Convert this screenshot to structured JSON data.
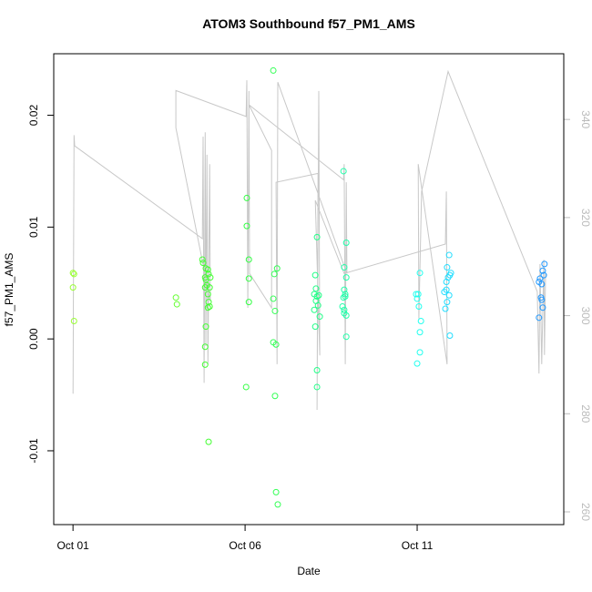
{
  "chart_data": {
    "type": "scatter",
    "title": "ATOM3 Southbound f57_PM1_AMS",
    "x_label": "Date",
    "y_label": "f57_PM1_AMS",
    "xlim": [
      -0.56,
      14.26
    ],
    "ylim": [
      -0.0166,
      0.0255
    ],
    "y2lim": [
      257.4,
      353.4
    ],
    "xticks": [
      {
        "value": 0,
        "label": "Oct 01"
      },
      {
        "value": 5,
        "label": "Oct 06"
      },
      {
        "value": 10,
        "label": "Oct 11"
      }
    ],
    "yticks": [
      -0.01,
      {
        "value": 0,
        "label": "0.00"
      },
      0.01,
      0.02
    ],
    "y2ticks": [
      260,
      280,
      300,
      320,
      340
    ],
    "series": [
      {
        "color": "#99ff33",
        "x": [
          0,
          0.03,
          0,
          0.03
        ],
        "values": [
          0.0059,
          0.0058,
          0.0046,
          0.0016
        ]
      },
      {
        "color": "#66ff33",
        "x": [
          2.99,
          3.02
        ],
        "values": [
          0.0037,
          0.0031
        ]
      },
      {
        "color": "#44ff33",
        "x": [
          3.76,
          3.78,
          3.84,
          3.84,
          3.86,
          3.89,
          3.86,
          3.92,
          3.94,
          3.97,
          3.86,
          3.84,
          3.84,
          3.94,
          3.92,
          3.94,
          3.97,
          3.99,
          3.92
        ],
        "values": [
          0.0071,
          0.0068,
          0.0055,
          0.0046,
          0.0053,
          0.0048,
          0.0063,
          0.004,
          0.0033,
          0.0029,
          0.0011,
          -0.0007,
          -0.0023,
          -0.0092,
          0.0062,
          0.0058,
          0.0046,
          0.0055,
          0.0028
        ]
      },
      {
        "color": "#33ff44",
        "x": [
          5.03,
          5.05,
          5.05,
          5.11,
          5.11,
          5.11
        ],
        "values": [
          -0.0043,
          0.0126,
          0.0101,
          0.0071,
          0.0054,
          0.0033
        ]
      },
      {
        "color": "#33ff55",
        "x": [
          5.82,
          5.85,
          5.93,
          5.82,
          5.87,
          5.82,
          5.9,
          5.87,
          5.9,
          5.95
        ],
        "values": [
          0.024,
          0.0058,
          0.0063,
          0.0036,
          0.0025,
          -0.0003,
          -0.0005,
          -0.0051,
          -0.0137,
          -0.0148
        ]
      },
      {
        "color": "#22ff88",
        "x": [
          7.04,
          7.06,
          7.01,
          7.09,
          7.06,
          7.14,
          7.12,
          7.01,
          7.17,
          7.04,
          7.09,
          7.09,
          7.09
        ],
        "values": [
          0.0057,
          0.0045,
          0.004,
          0.0038,
          0.0034,
          0.0039,
          0.003,
          0.0026,
          0.002,
          0.0011,
          0.0091,
          -0.0028,
          -0.0043
        ]
      },
      {
        "color": "#22ffaa",
        "x": [
          7.86,
          7.94,
          7.88,
          7.94,
          7.88,
          7.86,
          7.91,
          7.83,
          7.91,
          7.88,
          7.94,
          7.88,
          7.94
        ],
        "values": [
          0.015,
          0.0086,
          0.0064,
          0.0055,
          0.0044,
          0.0037,
          0.0038,
          0.0029,
          0.004,
          0.0023,
          0.0021,
          0.0026,
          0.0002
        ]
      },
      {
        "color": "#22ffee",
        "x": [
          10.03,
          10.08,
          10,
          10.05,
          10.11,
          10.08,
          10.08,
          10,
          9.97
        ],
        "values": [
          0.004,
          0.0059,
          0.0036,
          0.0029,
          0.0016,
          0.0006,
          -0.0012,
          -0.0022,
          0.004
        ]
      },
      {
        "color": "#22ddff",
        "x": [
          10.93,
          10.87,
          10.85,
          10.9,
          10.79,
          10.85,
          10.95,
          10.93,
          10.87,
          10.82,
          10.95,
          10.98
        ],
        "values": [
          0.0075,
          0.0064,
          0.0051,
          0.0055,
          0.0042,
          0.0044,
          0.0057,
          0.0039,
          0.0033,
          0.0027,
          0.0003,
          0.0059
        ]
      },
      {
        "color": "#2299ff",
        "x": [
          13.7,
          13.65,
          13.54,
          13.62,
          13.68,
          13.57,
          13.6,
          13.62,
          13.54,
          13.65
        ],
        "values": [
          0.0067,
          0.0061,
          0.0051,
          0.0049,
          0.0057,
          0.0054,
          0.0037,
          0.0035,
          0.0019,
          0.0028
        ]
      }
    ],
    "line": {
      "color": "#c8c8c8",
      "axis": "y2",
      "x": [
        0,
        0.03,
        0.05,
        3.76,
        3.78,
        3.81,
        3.84,
        3.86,
        3.89,
        3.92,
        3.97,
        3.99,
        2.99,
        2.99,
        5.03,
        5.05,
        5.08,
        5.11,
        5.13,
        5.77,
        5.77,
        5.11,
        7.86,
        7.88,
        7.91,
        7.94,
        7.96,
        5.95,
        5.93,
        5.9,
        7.12,
        7.09,
        7.14,
        7.17,
        7.04,
        7.88,
        10.82,
        10.85,
        10.87,
        10.03,
        10.05,
        10.13,
        10.9,
        13.49,
        13.54,
        13.57,
        13.62,
        13.68,
        13.7,
        13.73
      ],
      "values": [
        284.1,
        336.8,
        334.6,
        315.7,
        336.5,
        286.3,
        337.4,
        293.8,
        332.8,
        290.1,
        330.9,
        303.0,
        338.3,
        345.9,
        340.6,
        348.0,
        301.6,
        345.8,
        308.6,
        301.6,
        333.7,
        343.0,
        327.7,
        330.9,
        290.1,
        327.2,
        308.6,
        347.6,
        290.1,
        327.2,
        329.0,
        280.8,
        345.8,
        291.9,
        323.5,
        308.6,
        314.6,
        325.3,
        290.1,
        330.9,
        299.4,
        325.3,
        349.8,
        304.9,
        288.2,
        310.5,
        290.1,
        311.4,
        292.0,
        308.6
      ]
    }
  }
}
